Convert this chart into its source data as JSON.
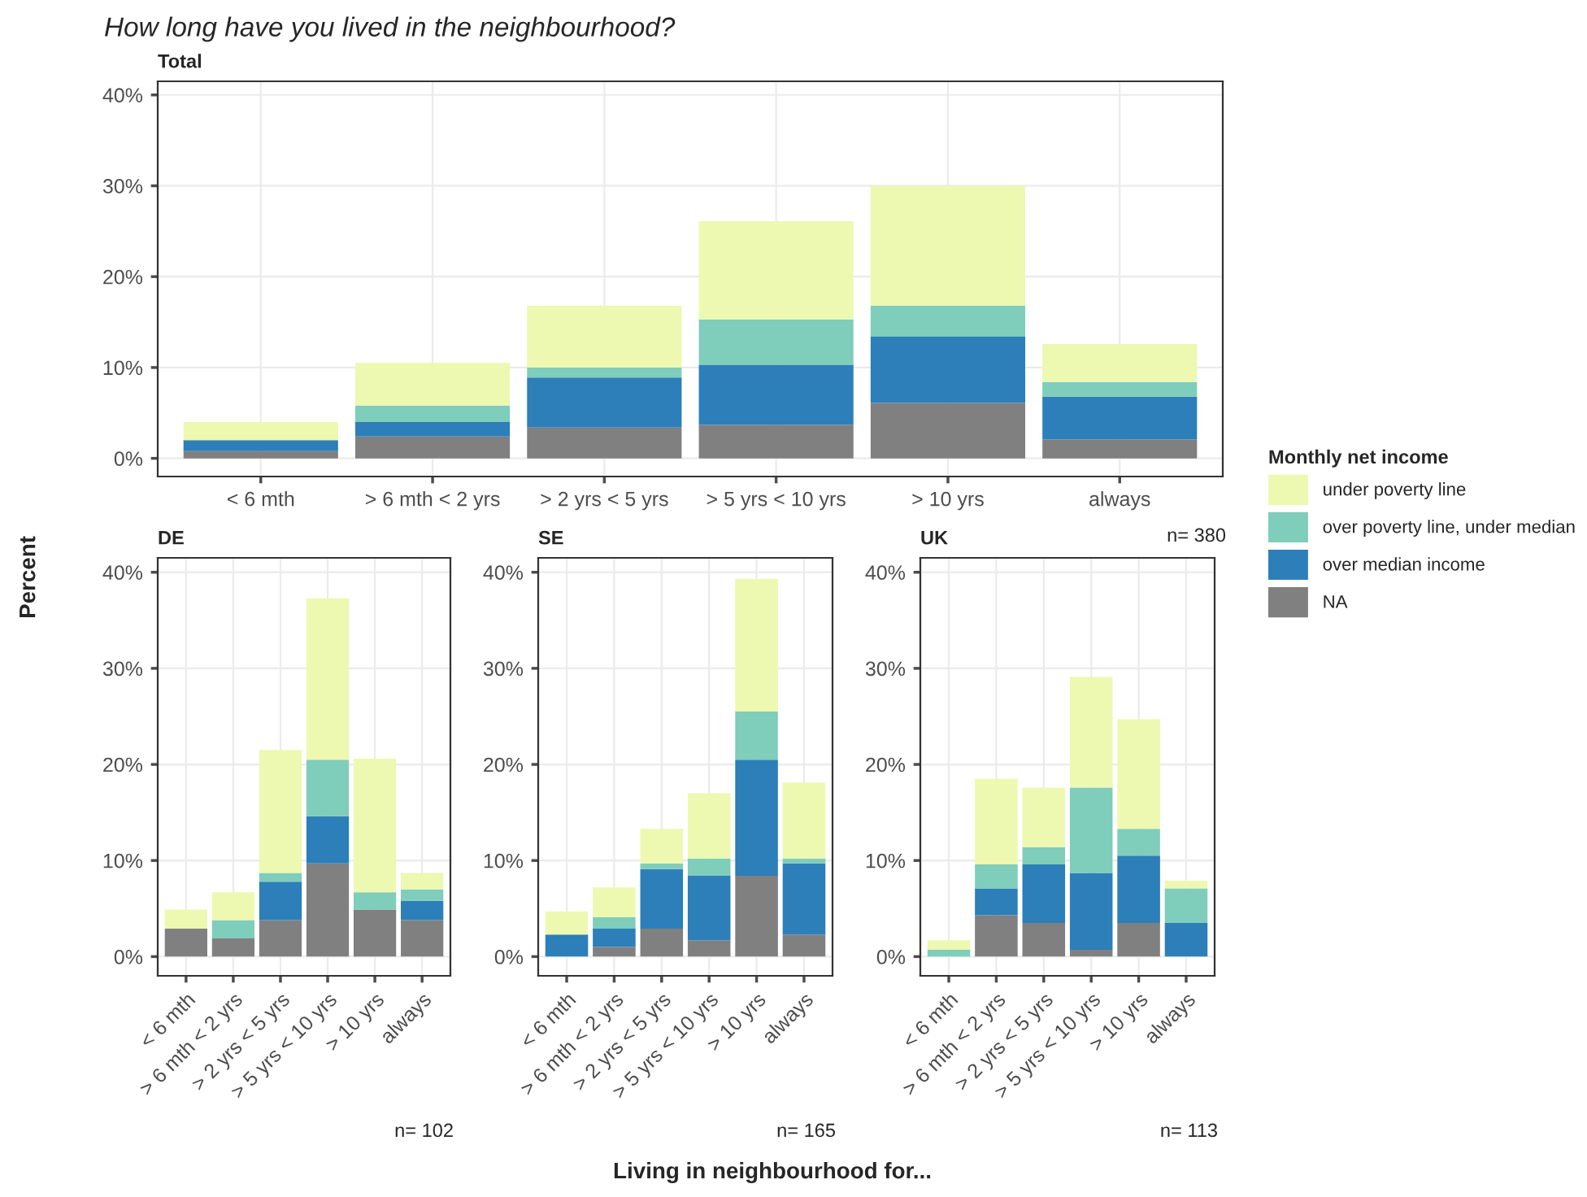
{
  "chart_data": [
    {
      "type": "bar",
      "stacked": true,
      "title": "How long have you lived in the neighbourhood?",
      "subtitle": "Total",
      "xlabel": "Living in neighbourhood for...",
      "ylabel": "Percent",
      "legend_title": "Monthly net income",
      "legend": "right",
      "grid": true,
      "categories": [
        "< 6 mth",
        "> 6 mth < 2 yrs",
        "> 2 yrs < 5 yrs",
        "> 5 yrs < 10 yrs",
        "> 10 yrs",
        "always"
      ],
      "ylim": [
        -2,
        41.5
      ],
      "yticks": [
        {
          "value": 0,
          "label": "0%"
        },
        {
          "value": 10,
          "label": "10%"
        },
        {
          "value": 20,
          "label": "20%"
        },
        {
          "value": 30,
          "label": "30%"
        },
        {
          "value": 40,
          "label": "40%"
        }
      ],
      "series": [
        {
          "name": "NA",
          "color": "#808080",
          "values": [
            0.8,
            2.4,
            3.4,
            3.7,
            6.1,
            2.1
          ]
        },
        {
          "name": "over median income",
          "color": "#2c7fb8",
          "values": [
            1.2,
            1.6,
            5.5,
            6.6,
            7.3,
            4.7
          ]
        },
        {
          "name": "over poverty line, under median",
          "color": "#7fcdbb",
          "values": [
            0,
            1.8,
            1.1,
            5.0,
            3.4,
            1.6
          ]
        },
        {
          "name": "under poverty line",
          "color": "#edf8b1",
          "values": [
            2.0,
            4.7,
            6.8,
            10.8,
            13.2,
            4.2
          ]
        }
      ],
      "annotations": [
        "n= 380"
      ]
    },
    {
      "type": "bar",
      "stacked": true,
      "title": "DE",
      "grid": true,
      "categories": [
        "< 6 mth",
        "> 6 mth < 2 yrs",
        "> 2 yrs < 5 yrs",
        "> 5 yrs < 10 yrs",
        "> 10 yrs",
        "always"
      ],
      "ylim": [
        -2,
        41.5
      ],
      "yticks": [
        {
          "value": 0,
          "label": "0%"
        },
        {
          "value": 10,
          "label": "10%"
        },
        {
          "value": 20,
          "label": "20%"
        },
        {
          "value": 30,
          "label": "30%"
        },
        {
          "value": 40,
          "label": "40%"
        }
      ],
      "series": [
        {
          "color": "#808080",
          "values": [
            2.9,
            1.9,
            3.8,
            9.7,
            4.9,
            3.8
          ]
        },
        {
          "color": "#2c7fb8",
          "values": [
            0,
            0,
            4.0,
            4.9,
            0,
            2.0
          ]
        },
        {
          "color": "#7fcdbb",
          "values": [
            0,
            1.9,
            0.9,
            5.9,
            1.8,
            1.2
          ]
        },
        {
          "color": "#edf8b1",
          "values": [
            2.0,
            2.9,
            12.8,
            16.8,
            13.9,
            1.7
          ]
        }
      ],
      "annotations": [
        "n= 102"
      ]
    },
    {
      "type": "bar",
      "stacked": true,
      "title": "SE",
      "grid": true,
      "categories": [
        "< 6 mth",
        "> 6 mth < 2 yrs",
        "> 2 yrs < 5 yrs",
        "> 5 yrs < 10 yrs",
        "> 10 yrs",
        "always"
      ],
      "ylim": [
        -2,
        41.5
      ],
      "yticks": [
        {
          "value": 0,
          "label": "0%"
        },
        {
          "value": 10,
          "label": "10%"
        },
        {
          "value": 20,
          "label": "20%"
        },
        {
          "value": 30,
          "label": "30%"
        },
        {
          "value": 40,
          "label": "40%"
        }
      ],
      "series": [
        {
          "color": "#808080",
          "values": [
            0,
            1.0,
            2.9,
            1.7,
            8.4,
            2.3
          ]
        },
        {
          "color": "#2c7fb8",
          "values": [
            2.3,
            1.9,
            6.2,
            6.7,
            12.1,
            7.4
          ]
        },
        {
          "color": "#7fcdbb",
          "values": [
            0,
            1.2,
            0.6,
            1.8,
            5.0,
            0.5
          ]
        },
        {
          "color": "#edf8b1",
          "values": [
            2.4,
            3.1,
            3.6,
            6.8,
            13.8,
            7.9
          ]
        }
      ],
      "annotations": [
        "n= 165"
      ]
    },
    {
      "type": "bar",
      "stacked": true,
      "title": "UK",
      "grid": true,
      "categories": [
        "< 6 mth",
        "> 6 mth < 2 yrs",
        "> 2 yrs < 5 yrs",
        "> 5 yrs < 10 yrs",
        "> 10 yrs",
        "always"
      ],
      "ylim": [
        -2,
        41.5
      ],
      "yticks": [
        {
          "value": 0,
          "label": "0%"
        },
        {
          "value": 10,
          "label": "10%"
        },
        {
          "value": 20,
          "label": "20%"
        },
        {
          "value": 30,
          "label": "30%"
        },
        {
          "value": 40,
          "label": "40%"
        }
      ],
      "series": [
        {
          "color": "#808080",
          "values": [
            0,
            4.3,
            3.5,
            0.7,
            3.5,
            0
          ]
        },
        {
          "color": "#2c7fb8",
          "values": [
            0,
            2.8,
            6.1,
            8.0,
            7.0,
            3.5
          ]
        },
        {
          "color": "#7fcdbb",
          "values": [
            0.7,
            2.5,
            1.8,
            8.9,
            2.8,
            3.6
          ]
        },
        {
          "color": "#edf8b1",
          "values": [
            1.0,
            8.9,
            6.2,
            11.5,
            11.4,
            0.8
          ]
        }
      ],
      "annotations": [
        "n= 113"
      ]
    }
  ]
}
